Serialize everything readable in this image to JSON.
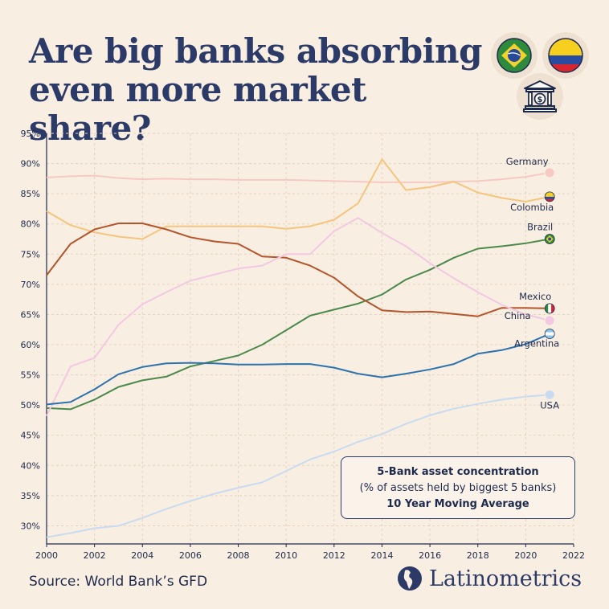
{
  "header": {
    "title_line1": "Are big banks absorbing",
    "title_line2": "even more market share?"
  },
  "icons": [
    "brazil-flag-icon",
    "colombia-flag-icon",
    "bank-dollar-icon"
  ],
  "footer": {
    "source": "Source: World Bank’s GFD",
    "brand": "Latinometrics"
  },
  "annotation": {
    "line1": "5-Bank asset concentration",
    "line2": "(% of assets held by biggest 5 banks)",
    "line3": "10 Year Moving Average"
  },
  "colors": {
    "background": "#f9eee2",
    "title": "#2b3a67",
    "grid": "#e8d6c4"
  },
  "chart_data": {
    "type": "line",
    "title": "",
    "xlabel": "",
    "ylabel": "",
    "xlim": [
      2000,
      2022
    ],
    "ylim": [
      27,
      95
    ],
    "x_ticks": [
      2000,
      2002,
      2004,
      2006,
      2008,
      2010,
      2012,
      2014,
      2016,
      2018,
      2020,
      2022
    ],
    "x_tick_labels": [
      "2000",
      "2002",
      "2004",
      "2006",
      "2008",
      "2010",
      "2012",
      "2014",
      "2016",
      "2018",
      "2020",
      "2022"
    ],
    "y_ticks": [
      30,
      35,
      40,
      45,
      50,
      55,
      60,
      65,
      70,
      75,
      80,
      85,
      90,
      95
    ],
    "y_tick_labels": [
      "30%",
      "35%",
      "40%",
      "45%",
      "50%",
      "55%",
      "60%",
      "65%",
      "70%",
      "75%",
      "80%",
      "85%",
      "90%",
      "95%"
    ],
    "grid": true,
    "x": [
      2000,
      2001,
      2002,
      2003,
      2004,
      2005,
      2006,
      2007,
      2008,
      2009,
      2010,
      2011,
      2012,
      2013,
      2014,
      2015,
      2016,
      2017,
      2018,
      2019,
      2020,
      2021
    ],
    "series": [
      {
        "name": "Germany",
        "color": "#f6c9c2",
        "values": [
          87.7,
          87.9,
          88.0,
          87.6,
          87.4,
          87.5,
          87.4,
          87.4,
          87.3,
          87.3,
          87.3,
          87.2,
          87.1,
          87.0,
          86.9,
          86.9,
          86.9,
          87.0,
          87.1,
          87.4,
          87.8,
          88.5
        ]
      },
      {
        "name": "Colombia",
        "color": "#f5c57d",
        "values": [
          82.1,
          79.8,
          78.6,
          77.9,
          77.5,
          79.6,
          79.6,
          79.6,
          79.6,
          79.6,
          79.2,
          79.6,
          80.7,
          83.4,
          90.7,
          85.6,
          86.1,
          87.0,
          85.2,
          84.3,
          83.7,
          84.5
        ]
      },
      {
        "name": "Brazil",
        "color": "#4a8a4c",
        "values": [
          49.5,
          49.3,
          50.9,
          53.0,
          54.1,
          54.7,
          56.4,
          57.3,
          58.2,
          60.0,
          62.4,
          64.8,
          65.8,
          66.8,
          68.3,
          70.8,
          72.4,
          74.4,
          75.9,
          76.3,
          76.8,
          77.5
        ]
      },
      {
        "name": "Mexico",
        "color": "#b4552c",
        "values": [
          71.5,
          76.7,
          79.1,
          80.1,
          80.1,
          79.1,
          77.8,
          77.1,
          76.7,
          74.6,
          74.4,
          73.1,
          71.1,
          68.0,
          65.7,
          65.4,
          65.5,
          65.1,
          64.7,
          66.1,
          66.1,
          66.0
        ]
      },
      {
        "name": "China",
        "color": "#f2c8e2",
        "values": [
          48.2,
          56.4,
          57.8,
          63.3,
          66.7,
          68.7,
          70.6,
          71.6,
          72.6,
          73.1,
          75.0,
          75.0,
          78.8,
          81.0,
          78.5,
          76.3,
          73.5,
          71.0,
          68.7,
          66.6,
          65.0,
          64.0
        ]
      },
      {
        "name": "Argentina",
        "color": "#2c72ad",
        "values": [
          50.1,
          50.5,
          52.6,
          55.1,
          56.3,
          56.9,
          57.0,
          56.9,
          56.7,
          56.7,
          56.8,
          56.8,
          56.2,
          55.2,
          54.6,
          55.2,
          55.9,
          56.8,
          58.5,
          59.1,
          60.1,
          61.8
        ]
      },
      {
        "name": "USA",
        "color": "#c9dbf1",
        "values": [
          28.1,
          28.8,
          29.6,
          30.0,
          31.3,
          32.8,
          34.1,
          35.3,
          36.3,
          37.2,
          39.1,
          41.0,
          42.3,
          43.9,
          45.2,
          46.9,
          48.3,
          49.4,
          50.2,
          50.9,
          51.4,
          51.7
        ]
      }
    ],
    "series_labels": [
      {
        "name": "Germany",
        "text": "Germany"
      },
      {
        "name": "Colombia",
        "text": "Colombia"
      },
      {
        "name": "Brazil",
        "text": "Brazil"
      },
      {
        "name": "Mexico",
        "text": "Mexico"
      },
      {
        "name": "China",
        "text": "China"
      },
      {
        "name": "Argentina",
        "text": "Argentina"
      },
      {
        "name": "USA",
        "text": "USA"
      }
    ]
  }
}
